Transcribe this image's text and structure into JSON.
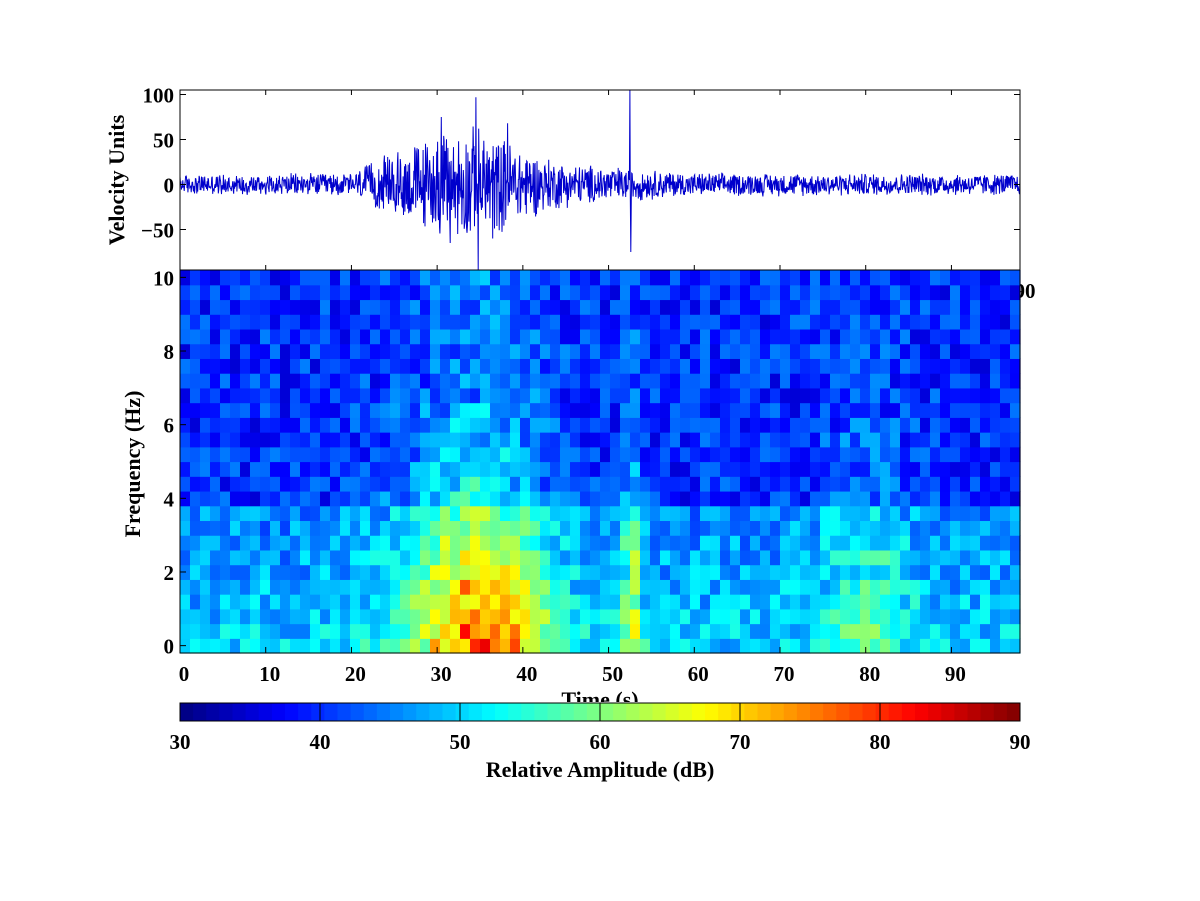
{
  "chart_data": [
    {
      "type": "line",
      "panel": "seismogram",
      "title": "",
      "xlabel": "",
      "ylabel": "Velocity Units",
      "ylim": [
        -95,
        105
      ],
      "xlim": [
        0,
        98
      ],
      "yticks": [
        100,
        50,
        0,
        -50
      ],
      "xticks_partially_visible": [
        "90"
      ],
      "grid": false,
      "line_color": "#0000cc",
      "series": [
        {
          "noise_level": 12,
          "envelope": [
            {
              "t": 0,
              "amp": 12
            },
            {
              "t": 20,
              "amp": 14
            },
            {
              "t": 23,
              "amp": 30
            },
            {
              "t": 26,
              "amp": 45
            },
            {
              "t": 30,
              "amp": 60
            },
            {
              "t": 34,
              "amp": 70
            },
            {
              "t": 38,
              "amp": 55
            },
            {
              "t": 42,
              "amp": 35
            },
            {
              "t": 46,
              "amp": 25
            },
            {
              "t": 50,
              "amp": 22
            },
            {
              "t": 55,
              "amp": 18
            },
            {
              "t": 60,
              "amp": 14
            },
            {
              "t": 98,
              "amp": 13
            }
          ],
          "spikes": [
            {
              "t": 34.5,
              "value": 97
            },
            {
              "t": 34.8,
              "value": -95
            },
            {
              "t": 30.5,
              "value": 75
            },
            {
              "t": 38.2,
              "value": 68
            },
            {
              "t": 52.5,
              "value": 105
            },
            {
              "t": 52.6,
              "value": -75
            },
            {
              "t": 31.5,
              "value": -65
            },
            {
              "t": 36.5,
              "value": -60
            }
          ]
        }
      ]
    },
    {
      "type": "heatmap",
      "panel": "spectrogram",
      "title": "",
      "xlabel": "Time (s)",
      "ylabel": "Frequency (Hz)",
      "xlim": [
        0,
        98
      ],
      "ylim": [
        -0.2,
        10.2
      ],
      "xticks": [
        0,
        10,
        20,
        30,
        40,
        50,
        60,
        70,
        80,
        90
      ],
      "yticks": [
        0,
        2,
        4,
        6,
        8,
        10
      ],
      "grid": false,
      "n_time_bins": 84,
      "n_freq_bins": 26,
      "value_units": "dB",
      "colormap": "jet",
      "features": {
        "background_db": 40,
        "low_freq_boost_db": 10,
        "low_freq_cutoff_hz": 3.8,
        "events": [
          {
            "t_center": 33,
            "t_width": 8,
            "db": 18,
            "f_max": 6.5
          },
          {
            "t_center": 38,
            "t_width": 6,
            "db": 14,
            "f_max": 4
          },
          {
            "t_center": 52.7,
            "t_width": 1.2,
            "db": 16,
            "f_max": 6.5
          },
          {
            "t_center": 80,
            "t_width": 5,
            "db": 9,
            "f_max": 6
          }
        ]
      }
    },
    {
      "type": "colorbar",
      "panel": "colorbar",
      "label": "Relative Amplitude  (dB)",
      "range": [
        30,
        90
      ],
      "ticks": [
        30,
        40,
        50,
        60,
        70,
        80,
        90
      ],
      "colormap": "jet",
      "n_steps": 64
    }
  ],
  "colors": {
    "axis": "#000000",
    "signal": "#0000cc",
    "background": "#ffffff"
  }
}
